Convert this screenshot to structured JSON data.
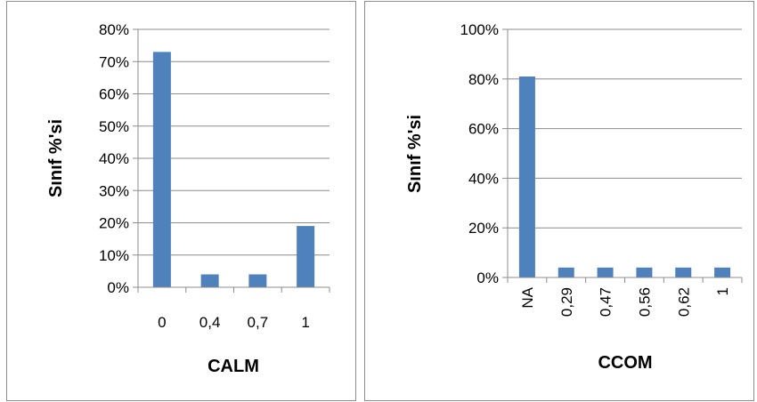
{
  "chart_data": [
    {
      "type": "bar",
      "title": "",
      "xlabel": "CALM",
      "ylabel": "Sınıf %'si",
      "categories": [
        "0",
        "0,4",
        "0,7",
        "1"
      ],
      "values": [
        73,
        4,
        4,
        19
      ],
      "ylim": [
        0,
        80
      ],
      "yticks": [
        0,
        10,
        20,
        30,
        40,
        50,
        60,
        70,
        80
      ],
      "ytick_labels": [
        "0%",
        "10%",
        "20%",
        "30%",
        "40%",
        "50%",
        "60%",
        "70%",
        "80%"
      ],
      "grid": true,
      "legend": "none",
      "bar_color": "#4f81bd"
    },
    {
      "type": "bar",
      "title": "",
      "xlabel": "CCOM",
      "ylabel": "Sınıf %'si",
      "categories": [
        "NA",
        "0,29",
        "0,47",
        "0,56",
        "0,62",
        "1"
      ],
      "values": [
        81,
        4,
        4,
        4,
        4,
        4
      ],
      "ylim": [
        0,
        100
      ],
      "yticks": [
        0,
        20,
        40,
        60,
        80,
        100
      ],
      "ytick_labels": [
        "0%",
        "20%",
        "40%",
        "60%",
        "80%",
        "100%"
      ],
      "grid": true,
      "legend": "none",
      "bar_color": "#4f81bd"
    }
  ]
}
